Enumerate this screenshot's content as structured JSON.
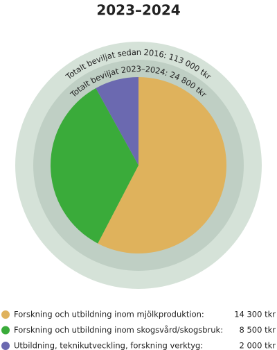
{
  "chart_data": {
    "type": "pie",
    "title": "2023–2024",
    "annotations": [
      "Totalt beviljat sedan 2016: 113 000 tkr",
      "Totalt beviljat 2023–2024: 24 800 tkr"
    ],
    "categories": [
      "Forskning och utbildning inom mjölkproduktion:",
      "Forskning och utbildning inom skogsvård/skogsbruk:",
      "Utbildning, teknikutveckling, forskning verktyg:"
    ],
    "values": [
      14300,
      8500,
      2000
    ],
    "value_labels": [
      "14 300 tkr",
      "8 500 tkr",
      "2 000 tkr"
    ],
    "colors": [
      "#dfb25c",
      "#3aab3a",
      "#6b69b0"
    ]
  }
}
